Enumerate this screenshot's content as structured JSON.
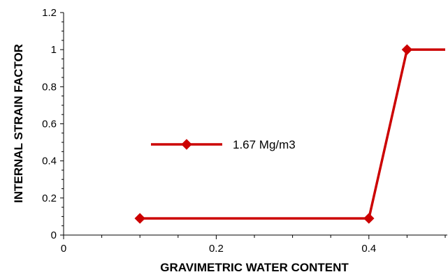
{
  "chart_data": {
    "type": "line",
    "title": "",
    "xlabel": "GRAVIMETRIC WATER CONTENT",
    "ylabel": "INTERNAL STRAIN FACTOR",
    "xlim": [
      0,
      0.5
    ],
    "ylim": [
      0,
      1.2
    ],
    "x_ticks": [
      0,
      0.2,
      0.4
    ],
    "x_tick_labels": [
      "0",
      "0.2",
      "0.4"
    ],
    "y_ticks": [
      0,
      0.2,
      0.4,
      0.6,
      0.8,
      1,
      1.2
    ],
    "y_tick_labels": [
      "0",
      "0.2",
      "0.4",
      "0.6",
      "0.8",
      "1",
      "1.2"
    ],
    "grid": false,
    "legend_position": "center-left",
    "series": [
      {
        "name": "1.67 Mg/m3",
        "color": "#cc0000",
        "marker": "diamond",
        "x": [
          0.1,
          0.4,
          0.45,
          0.5
        ],
        "y": [
          0.09,
          0.09,
          1.0,
          1.0
        ],
        "marker_indices": [
          0,
          1,
          2
        ]
      }
    ]
  }
}
